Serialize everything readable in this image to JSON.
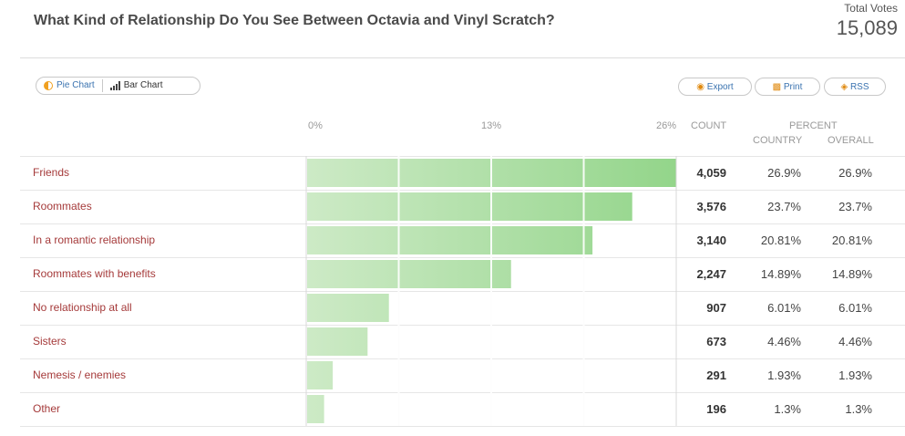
{
  "header": {
    "title": "What Kind of Relationship Do You See Between Octavia and Vinyl Scratch?",
    "total_label": "Total Votes",
    "total_value": "15,089"
  },
  "toolbar": {
    "pie_label": "Pie Chart",
    "bar_label": "Bar Chart",
    "export_label": "Export",
    "print_label": "Print",
    "rss_label": "RSS"
  },
  "columns": {
    "count": "COUNT",
    "percent": "PERCENT",
    "country": "COUNTRY",
    "overall": "OVERALL"
  },
  "colors": {
    "bar_light": "#cdeac6",
    "bar_dark": "#93d58a",
    "label": "#a53a3a",
    "grid": "#e0e0e0"
  },
  "rows": [
    {
      "label": "Friends",
      "count": "4,059",
      "country": "26.9%",
      "overall": "26.9%"
    },
    {
      "label": "Roommates",
      "count": "3,576",
      "country": "23.7%",
      "overall": "23.7%"
    },
    {
      "label": "In a romantic relationship",
      "count": "3,140",
      "country": "20.81%",
      "overall": "20.81%"
    },
    {
      "label": "Roommates with benefits",
      "count": "2,247",
      "country": "14.89%",
      "overall": "14.89%"
    },
    {
      "label": "No relationship at all",
      "count": "907",
      "country": "6.01%",
      "overall": "6.01%"
    },
    {
      "label": "Sisters",
      "count": "673",
      "country": "4.46%",
      "overall": "4.46%"
    },
    {
      "label": "Nemesis / enemies",
      "count": "291",
      "country": "1.93%",
      "overall": "1.93%"
    },
    {
      "label": "Other",
      "count": "196",
      "country": "1.3%",
      "overall": "1.3%"
    }
  ],
  "chart_data": {
    "type": "bar",
    "orientation": "horizontal",
    "categories": [
      "Friends",
      "Roommates",
      "In a romantic relationship",
      "Roommates with benefits",
      "No relationship at all",
      "Sisters",
      "Nemesis / enemies",
      "Other"
    ],
    "values": [
      26.9,
      23.7,
      20.81,
      14.89,
      6.01,
      4.46,
      1.93,
      1.3
    ],
    "counts": [
      4059,
      3576,
      3140,
      2247,
      907,
      673,
      291,
      196
    ],
    "xticks": [
      "0%",
      "13%",
      "26%"
    ],
    "xlim": [
      0,
      26.9
    ],
    "grid": true
  }
}
